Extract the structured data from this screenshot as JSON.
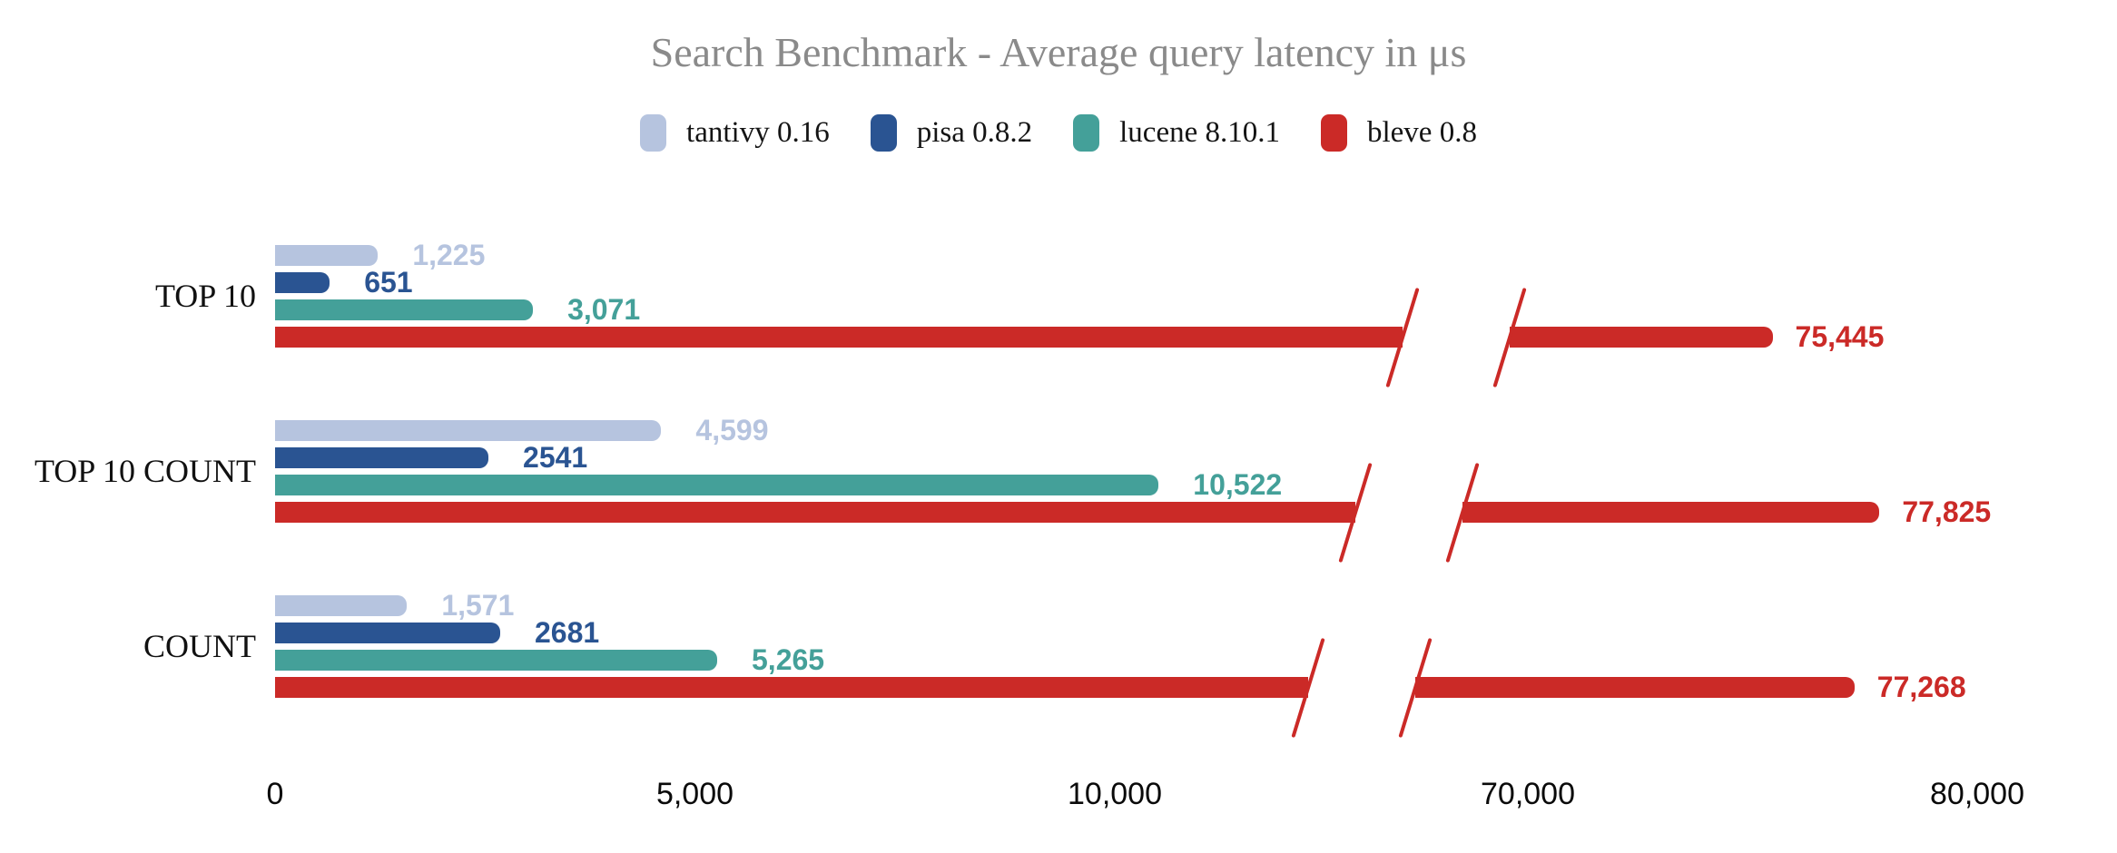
{
  "chart_data": {
    "type": "bar",
    "orientation": "horizontal",
    "title": "Search Benchmark - Average query latency in μs",
    "value_unit": "μs",
    "legend_position": "top",
    "grid": "off",
    "categories": [
      "TOP 10",
      "TOP 10 COUNT",
      "COUNT"
    ],
    "series": [
      {
        "name": "tantivy 0.16",
        "color": "#b6c4df",
        "values": [
          1225,
          4599,
          1571
        ],
        "display_values": [
          "1,225",
          "4,599",
          "1,571"
        ]
      },
      {
        "name": "pisa 0.8.2",
        "color": "#2a5492",
        "values": [
          651,
          2541,
          2681
        ],
        "display_values": [
          "651",
          "2541",
          "2681"
        ]
      },
      {
        "name": "lucene 8.10.1",
        "color": "#44a099",
        "values": [
          3071,
          10522,
          5265
        ],
        "display_values": [
          "3,071",
          "10,522",
          "5,265"
        ]
      },
      {
        "name": "bleve 0.8",
        "color": "#cb2a27",
        "values": [
          75445,
          77825,
          77268
        ],
        "display_values": [
          "75,445",
          "77,825",
          "77,268"
        ]
      }
    ],
    "x_axis": {
      "ticks": [
        {
          "value": 0,
          "label": "0"
        },
        {
          "value": 5000,
          "label": "5,000"
        },
        {
          "value": 10000,
          "label": "10,000"
        },
        {
          "value": 70000,
          "label": "70,000"
        },
        {
          "value": 80000,
          "label": "80,000"
        }
      ],
      "break": {
        "after_value": 10000,
        "resume_value": 70000
      }
    }
  }
}
